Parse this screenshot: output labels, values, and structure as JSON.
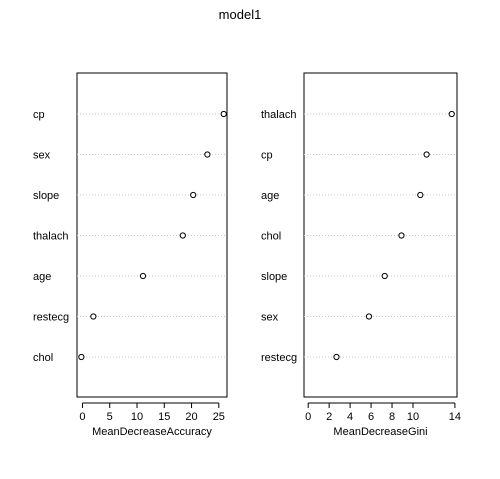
{
  "title": "model1",
  "chart_data": [
    {
      "type": "scatter",
      "subtype": "dotchart",
      "xlabel": "MeanDecreaseAccuracy",
      "ylabel": "",
      "xlim": [
        -1,
        26.5
      ],
      "xticks": [
        0,
        5,
        10,
        15,
        20,
        25
      ],
      "categories": [
        "cp",
        "sex",
        "slope",
        "thalach",
        "age",
        "restecg",
        "chol"
      ],
      "values": [
        25.9,
        22.9,
        20.3,
        18.4,
        11.1,
        2.0,
        -0.2
      ],
      "grid": "dotted-horizontal"
    },
    {
      "type": "scatter",
      "subtype": "dotchart",
      "xlabel": "MeanDecreaseGini",
      "ylabel": "",
      "xlim": [
        -0.4,
        14.2
      ],
      "xticks": [
        0,
        2,
        4,
        6,
        8,
        10,
        14
      ],
      "categories": [
        "thalach",
        "cp",
        "age",
        "chol",
        "slope",
        "sex",
        "restecg"
      ],
      "values": [
        13.7,
        11.3,
        10.7,
        8.9,
        7.3,
        5.8,
        2.7
      ],
      "grid": "dotted-horizontal"
    }
  ]
}
